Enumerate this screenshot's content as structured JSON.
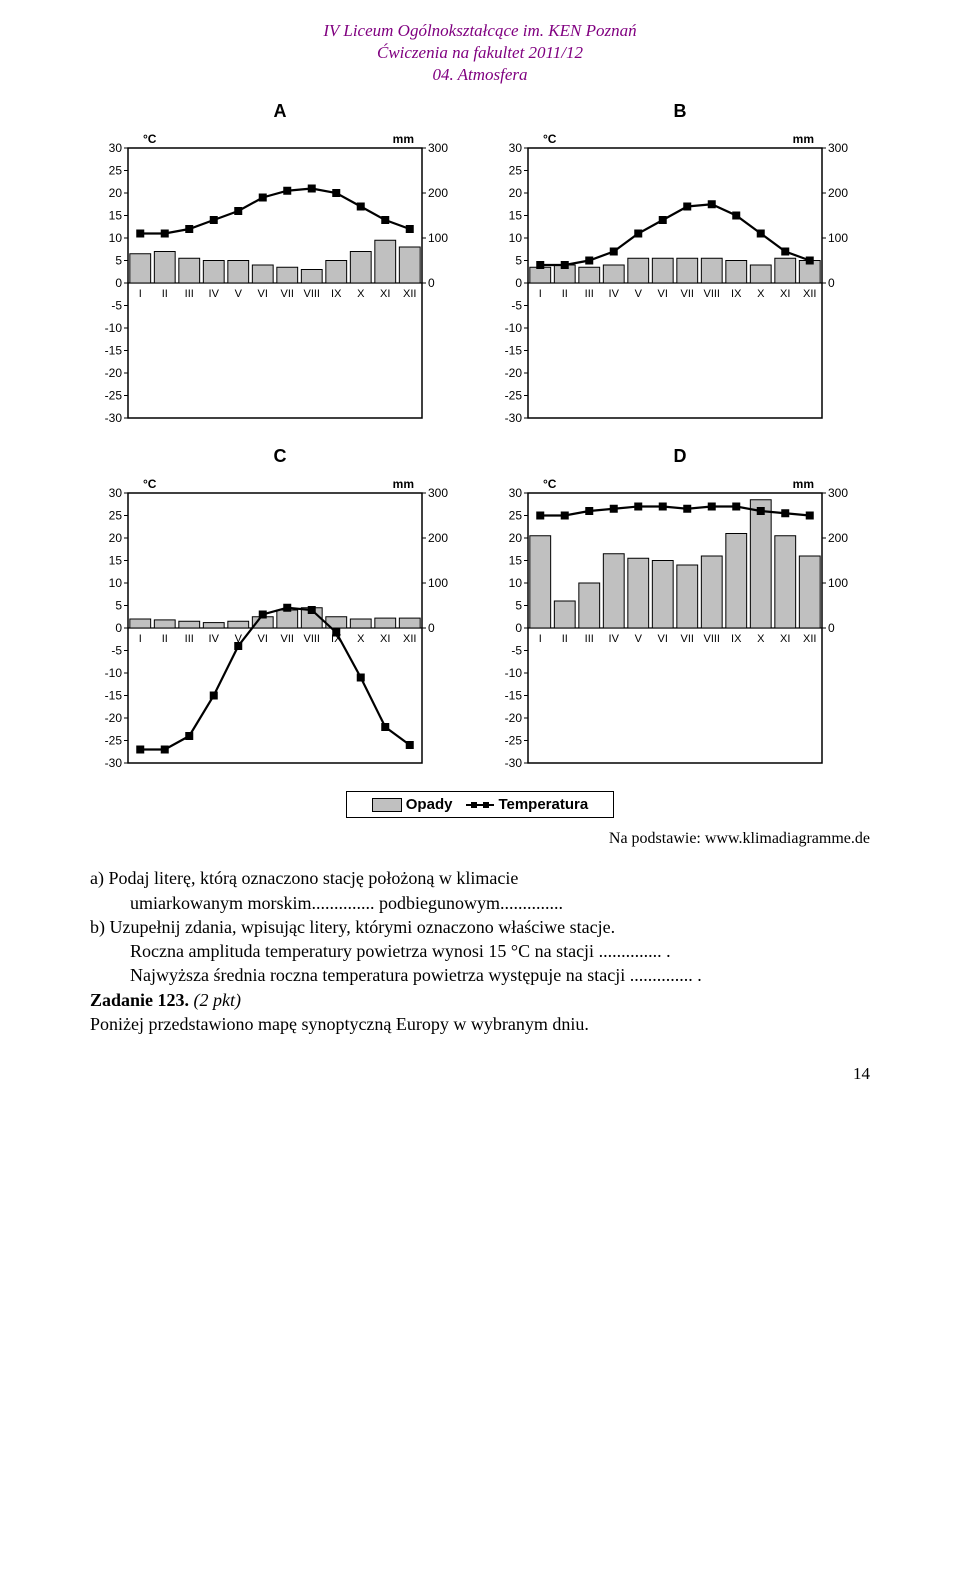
{
  "header": {
    "line1": "IV Liceum Ogólnokształcące im. KEN Poznań",
    "line2": "Ćwiczenia na fakultet 2011/12",
    "line3": "04. Atmosfera"
  },
  "charts": {
    "axis": {
      "left_label": "°C",
      "right_label": "mm",
      "left_ticks": [
        30,
        25,
        20,
        15,
        10,
        5,
        0,
        -5,
        -10,
        -15,
        -20,
        -25,
        -30
      ],
      "right_ticks": [
        300,
        200,
        100,
        0
      ],
      "months": [
        "I",
        "II",
        "III",
        "IV",
        "V",
        "VI",
        "VII",
        "VIII",
        "IX",
        "X",
        "XI",
        "XII"
      ],
      "font_size": 12,
      "font_family": "Arial",
      "grid_color": "#000000",
      "bar_fill": "#c0c0c0",
      "bar_stroke": "#000000",
      "line_color": "#000000",
      "marker_size": 4,
      "bar_width": 0.85,
      "temp_range": [
        -30,
        30
      ],
      "precip_range": [
        0,
        300
      ]
    },
    "panels": [
      {
        "title": "A",
        "precip_mm": [
          65,
          70,
          55,
          50,
          50,
          40,
          35,
          30,
          50,
          70,
          95,
          80
        ],
        "temp_c": [
          11,
          11,
          12,
          14,
          16,
          19,
          20.5,
          21,
          20,
          17,
          14,
          12
        ]
      },
      {
        "title": "B",
        "precip_mm": [
          35,
          40,
          35,
          40,
          55,
          55,
          55,
          55,
          50,
          40,
          55,
          50
        ],
        "temp_c": [
          4,
          4,
          5,
          7,
          11,
          14,
          17,
          17.5,
          15,
          11,
          7,
          5
        ]
      },
      {
        "title": "C",
        "precip_mm": [
          20,
          18,
          15,
          12,
          15,
          25,
          40,
          45,
          25,
          20,
          22,
          22
        ],
        "temp_c": [
          -27,
          -27,
          -24,
          -15,
          -4,
          3,
          4.5,
          4,
          -1,
          -11,
          -22,
          -26
        ]
      },
      {
        "title": "D",
        "precip_mm": [
          205,
          60,
          100,
          165,
          155,
          150,
          140,
          160,
          210,
          285,
          205,
          160
        ],
        "temp_c": [
          25,
          25,
          26,
          26.5,
          27,
          27,
          26.5,
          27,
          27,
          26,
          25.5,
          25
        ]
      }
    ]
  },
  "legend": {
    "bar_label": "Opady",
    "line_label": "Temperatura"
  },
  "source_text": "Na podstawie: www.klimadiagramme.de",
  "body": {
    "a_label": "a) Podaj literę, którą oznaczono stację położoną w klimacie",
    "a_line2_prefix": "umiarkowanym morskim",
    "a_dots1": "..............",
    "a_mid": " podbiegunowym",
    "a_dots2": "..............",
    "b_label": "b) Uzupełnij zdania, wpisując litery, którymi oznaczono właściwe stacje.",
    "b_s1": "Roczna amplituda temperatury powietrza wynosi 15 °C na stacji",
    "b_dots1": ".............. .",
    "b_s2": "Najwyższa średnia roczna temperatura powietrza występuje na stacji",
    "b_dots2": ".............. .",
    "zadanie_label": "Zadanie 123.",
    "zadanie_pts": " (2 pkt)",
    "zadanie_text": "Poniżej przedstawiono mapę synoptyczną Europy w wybranym dniu."
  },
  "page_number": "14"
}
